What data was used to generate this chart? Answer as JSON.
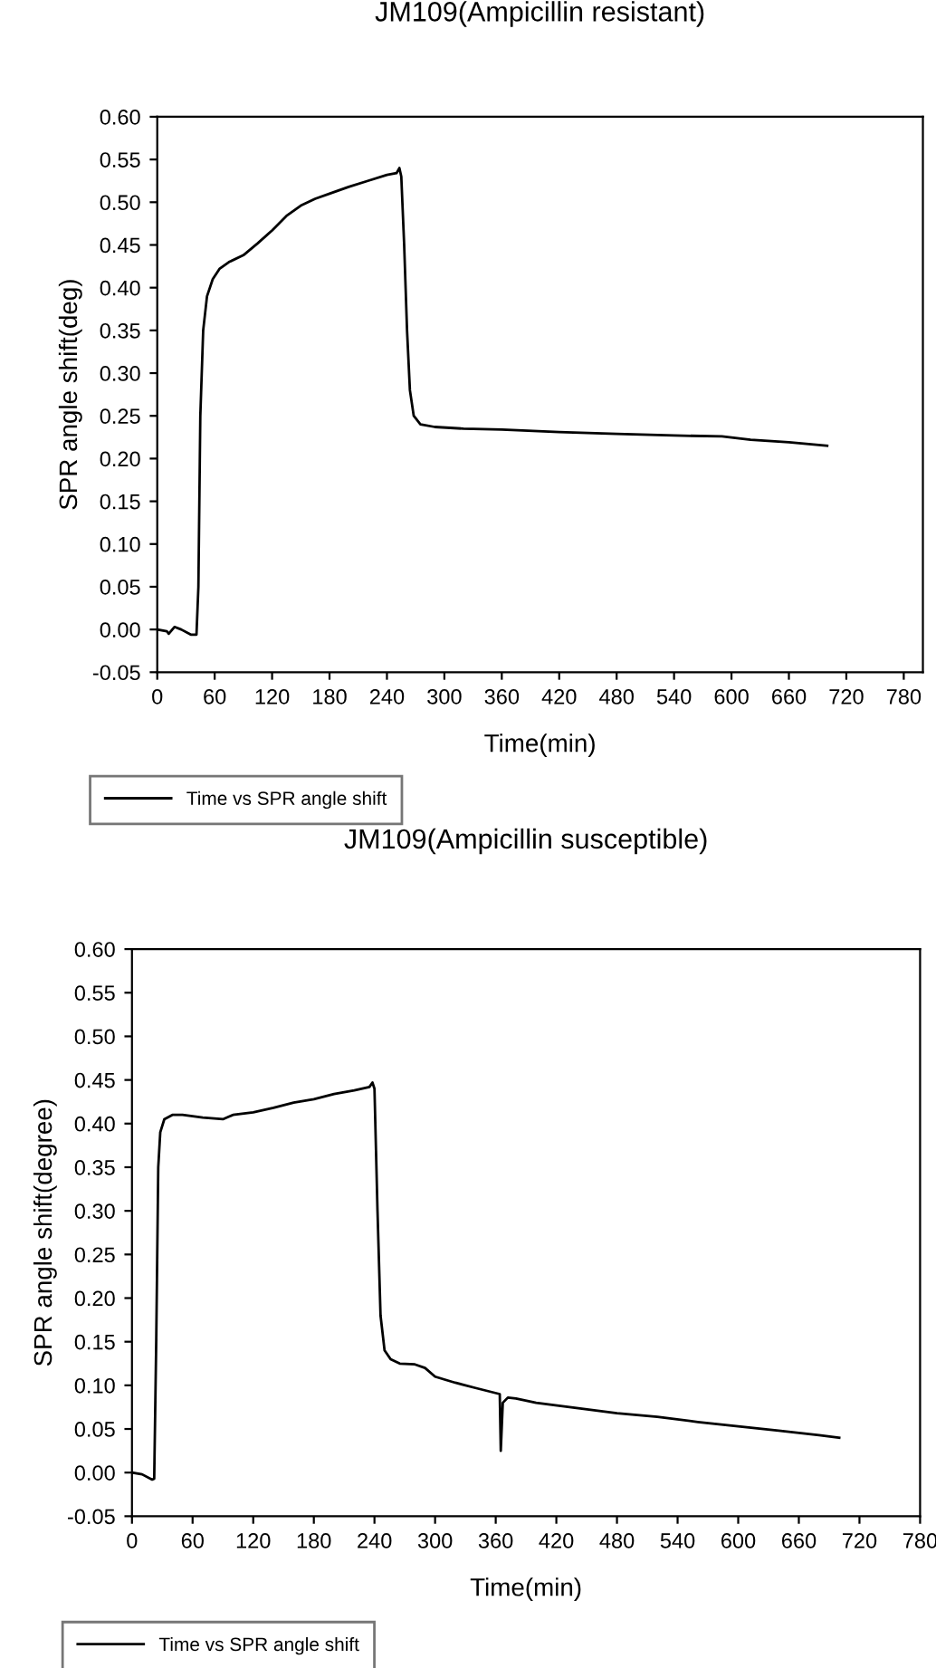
{
  "chart_data": [
    {
      "type": "line",
      "title": "JM109(Ampicillin resistant)",
      "xlabel": "Time(min)",
      "ylabel": "SPR angle shift(deg)",
      "xlim": [
        0,
        800
      ],
      "ylim": [
        -0.05,
        0.6
      ],
      "xticks": [
        0,
        60,
        120,
        180,
        240,
        300,
        360,
        420,
        480,
        540,
        600,
        660,
        720,
        780
      ],
      "yticks": [
        {
          "value": -0.05,
          "label": "-0.05"
        },
        {
          "value": 0,
          "label": "0.00"
        },
        {
          "value": 0.05,
          "label": "0.05"
        },
        {
          "value": 0.1,
          "label": "0.10"
        },
        {
          "value": 0.15,
          "label": "0.15"
        },
        {
          "value": 0.2,
          "label": "0.20"
        },
        {
          "value": 0.25,
          "label": "0.25"
        },
        {
          "value": 0.3,
          "label": "0.30"
        },
        {
          "value": 0.35,
          "label": "0.35"
        },
        {
          "value": 0.4,
          "label": "0.40"
        },
        {
          "value": 0.45,
          "label": "0.45"
        },
        {
          "value": 0.5,
          "label": "0.50"
        },
        {
          "value": 0.55,
          "label": "0.55"
        },
        {
          "value": 0.6,
          "label": "0.60"
        }
      ],
      "legend": "bottom left",
      "series": [
        {
          "name": "Time vs SPR angle shift",
          "color": "#000000",
          "x": [
            0,
            10,
            12,
            18,
            25,
            35,
            41,
            43,
            45,
            48,
            52,
            58,
            65,
            75,
            90,
            105,
            120,
            135,
            150,
            165,
            180,
            200,
            220,
            240,
            250,
            253,
            255,
            258,
            261,
            264,
            268,
            275,
            290,
            320,
            360,
            420,
            480,
            540,
            590,
            620,
            660,
            700
          ],
          "values": [
            0,
            -0.002,
            -0.005,
            0.003,
            0,
            -0.006,
            -0.006,
            0.05,
            0.25,
            0.35,
            0.39,
            0.41,
            0.422,
            0.43,
            0.438,
            0.452,
            0.467,
            0.484,
            0.496,
            0.504,
            0.51,
            0.518,
            0.525,
            0.532,
            0.534,
            0.54,
            0.53,
            0.45,
            0.35,
            0.28,
            0.25,
            0.24,
            0.237,
            0.235,
            0.234,
            0.231,
            0.229,
            0.227,
            0.226,
            0.222,
            0.219,
            0.215
          ]
        }
      ]
    },
    {
      "type": "line",
      "title": "JM109(Ampicillin susceptible)",
      "xlabel": "Time(min)",
      "ylabel": "SPR angle shift(degree)",
      "xlim": [
        0,
        780
      ],
      "ylim": [
        -0.05,
        0.6
      ],
      "xticks": [
        0,
        60,
        120,
        180,
        240,
        300,
        360,
        420,
        480,
        540,
        600,
        660,
        720,
        780
      ],
      "yticks": [
        {
          "value": -0.05,
          "label": "-0.05"
        },
        {
          "value": 0,
          "label": "0.00"
        },
        {
          "value": 0.05,
          "label": "0.05"
        },
        {
          "value": 0.1,
          "label": "0.10"
        },
        {
          "value": 0.15,
          "label": "0.15"
        },
        {
          "value": 0.2,
          "label": "0.20"
        },
        {
          "value": 0.25,
          "label": "0.25"
        },
        {
          "value": 0.3,
          "label": "0.30"
        },
        {
          "value": 0.35,
          "label": "0.35"
        },
        {
          "value": 0.4,
          "label": "0.40"
        },
        {
          "value": 0.45,
          "label": "0.45"
        },
        {
          "value": 0.5,
          "label": "0.50"
        },
        {
          "value": 0.55,
          "label": "0.55"
        },
        {
          "value": 0.6,
          "label": "0.60"
        }
      ],
      "legend": "bottom left",
      "series": [
        {
          "name": "Time vs SPR angle shift",
          "color": "#000000",
          "x": [
            0,
            10,
            20,
            22,
            24,
            26,
            28,
            32,
            40,
            50,
            70,
            90,
            100,
            120,
            140,
            160,
            180,
            200,
            220,
            235,
            238,
            240,
            243,
            246,
            250,
            256,
            265,
            280,
            290,
            300,
            320,
            340,
            364,
            365,
            367,
            372,
            380,
            400,
            440,
            480,
            520,
            560,
            600,
            640,
            680,
            700
          ],
          "values": [
            0,
            -0.002,
            -0.008,
            -0.007,
            0.15,
            0.35,
            0.39,
            0.405,
            0.41,
            0.41,
            0.407,
            0.405,
            0.41,
            0.413,
            0.418,
            0.424,
            0.428,
            0.434,
            0.438,
            0.442,
            0.447,
            0.44,
            0.3,
            0.18,
            0.14,
            0.13,
            0.125,
            0.124,
            0.12,
            0.11,
            0.103,
            0.097,
            0.09,
            0.025,
            0.08,
            0.086,
            0.085,
            0.08,
            0.074,
            0.068,
            0.064,
            0.058,
            0.053,
            0.048,
            0.043,
            0.04
          ]
        }
      ]
    }
  ]
}
